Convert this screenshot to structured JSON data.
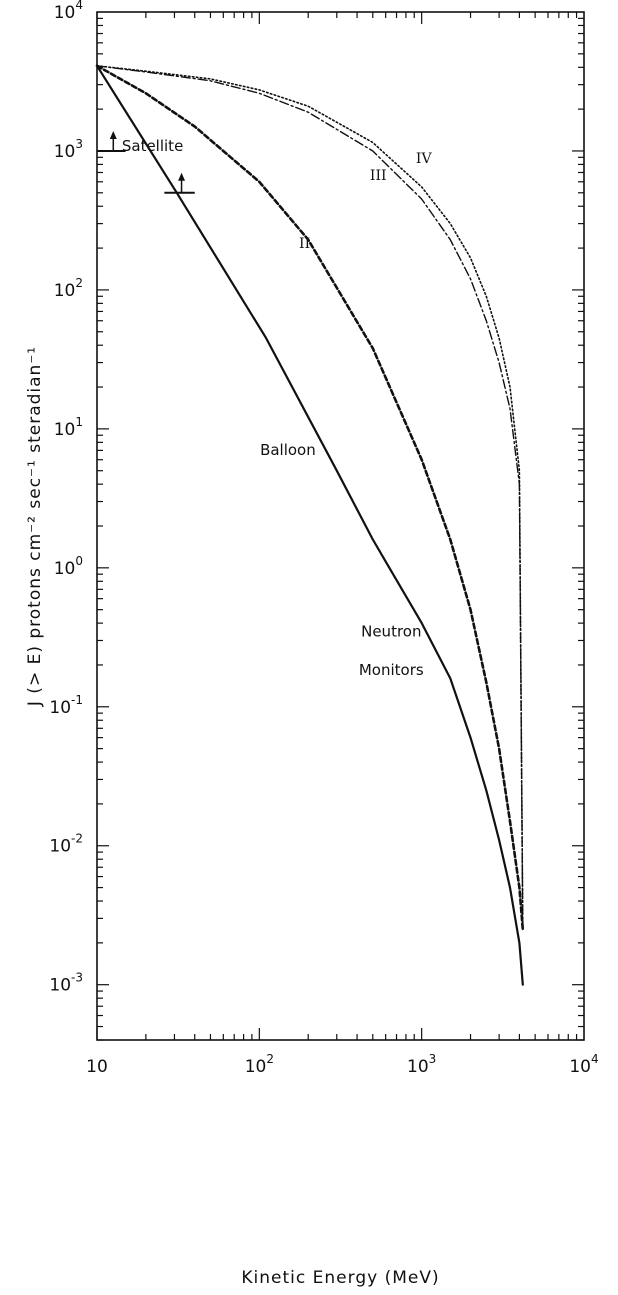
{
  "chart_data": {
    "type": "line",
    "title": "",
    "xlabel": "Kinetic   Energy (MeV)",
    "ylabel": "J (> E) protons cm⁻² sec⁻¹ steradian⁻¹",
    "x_scale": "log",
    "y_scale": "log",
    "xlim": [
      10,
      10000
    ],
    "ylim": [
      0.0004,
      10000
    ],
    "grid": false,
    "x_ticks": [
      {
        "value": 10,
        "base": "10",
        "exp": ""
      },
      {
        "value": 100,
        "base": "10",
        "exp": "2"
      },
      {
        "value": 1000,
        "base": "10",
        "exp": "3"
      },
      {
        "value": 10000,
        "base": "10",
        "exp": "4"
      }
    ],
    "y_ticks": [
      {
        "value": 10000,
        "base": "10",
        "exp": "4"
      },
      {
        "value": 1000,
        "base": "10",
        "exp": "3"
      },
      {
        "value": 100,
        "base": "10",
        "exp": "2"
      },
      {
        "value": 10,
        "base": "10",
        "exp": "1"
      },
      {
        "value": 1,
        "base": "10",
        "exp": "0"
      },
      {
        "value": 0.1,
        "base": "10",
        "exp": "-1"
      },
      {
        "value": 0.01,
        "base": "10",
        "exp": "-2"
      },
      {
        "value": 0.001,
        "base": "10",
        "exp": "-3"
      }
    ],
    "series": [
      {
        "label": "",
        "style": "solid",
        "x": [
          10,
          31,
          110,
          300,
          500,
          1000,
          1500,
          2000,
          2500,
          3000,
          3500,
          4000,
          4200
        ],
        "y": [
          4100,
          500,
          45,
          5,
          1.6,
          0.4,
          0.16,
          0.06,
          0.025,
          0.011,
          0.005,
          0.002,
          0.001
        ]
      },
      {
        "label": "II",
        "style": "dashed",
        "x": [
          10,
          20,
          40,
          100,
          200,
          500,
          1000,
          1500,
          2000,
          2500,
          3000,
          3500,
          4000,
          4200
        ],
        "y": [
          4100,
          2600,
          1500,
          600,
          230,
          38,
          6,
          1.6,
          0.5,
          0.15,
          0.05,
          0.015,
          0.005,
          0.0025
        ]
      },
      {
        "label": "III",
        "style": "dashdot",
        "x": [
          10,
          20,
          50,
          100,
          200,
          500,
          1000,
          1500,
          2000,
          2500,
          3000,
          3500,
          4000,
          4200
        ],
        "y": [
          4100,
          3700,
          3200,
          2600,
          1900,
          1000,
          450,
          230,
          120,
          60,
          30,
          14,
          4,
          0.0025
        ]
      },
      {
        "label": "IV",
        "style": "dotted",
        "x": [
          10,
          20,
          50,
          100,
          200,
          500,
          1000,
          1500,
          2000,
          2500,
          3000,
          3500,
          4000,
          4200
        ],
        "y": [
          4100,
          3750,
          3300,
          2750,
          2100,
          1150,
          550,
          300,
          170,
          90,
          45,
          20,
          5,
          0.0025
        ]
      }
    ],
    "threshold_markers": [
      {
        "x_min": 10,
        "x_max": 15,
        "y": 1000
      },
      {
        "x_min": 26,
        "x_max": 40,
        "y": 500
      }
    ],
    "annotations": [
      {
        "text": "Satellite",
        "x": 22,
        "y": 1000
      },
      {
        "text": "Balloon",
        "x": 150,
        "y": 6.5
      },
      {
        "text": "Neutron",
        "x": 650,
        "y": 0.32
      },
      {
        "text": "Monitors",
        "x": 650,
        "y": 0.17
      },
      {
        "text": "II",
        "x": 190,
        "y": 200
      },
      {
        "text": "III",
        "x": 540,
        "y": 620
      },
      {
        "text": "IV",
        "x": 1030,
        "y": 820
      }
    ]
  }
}
